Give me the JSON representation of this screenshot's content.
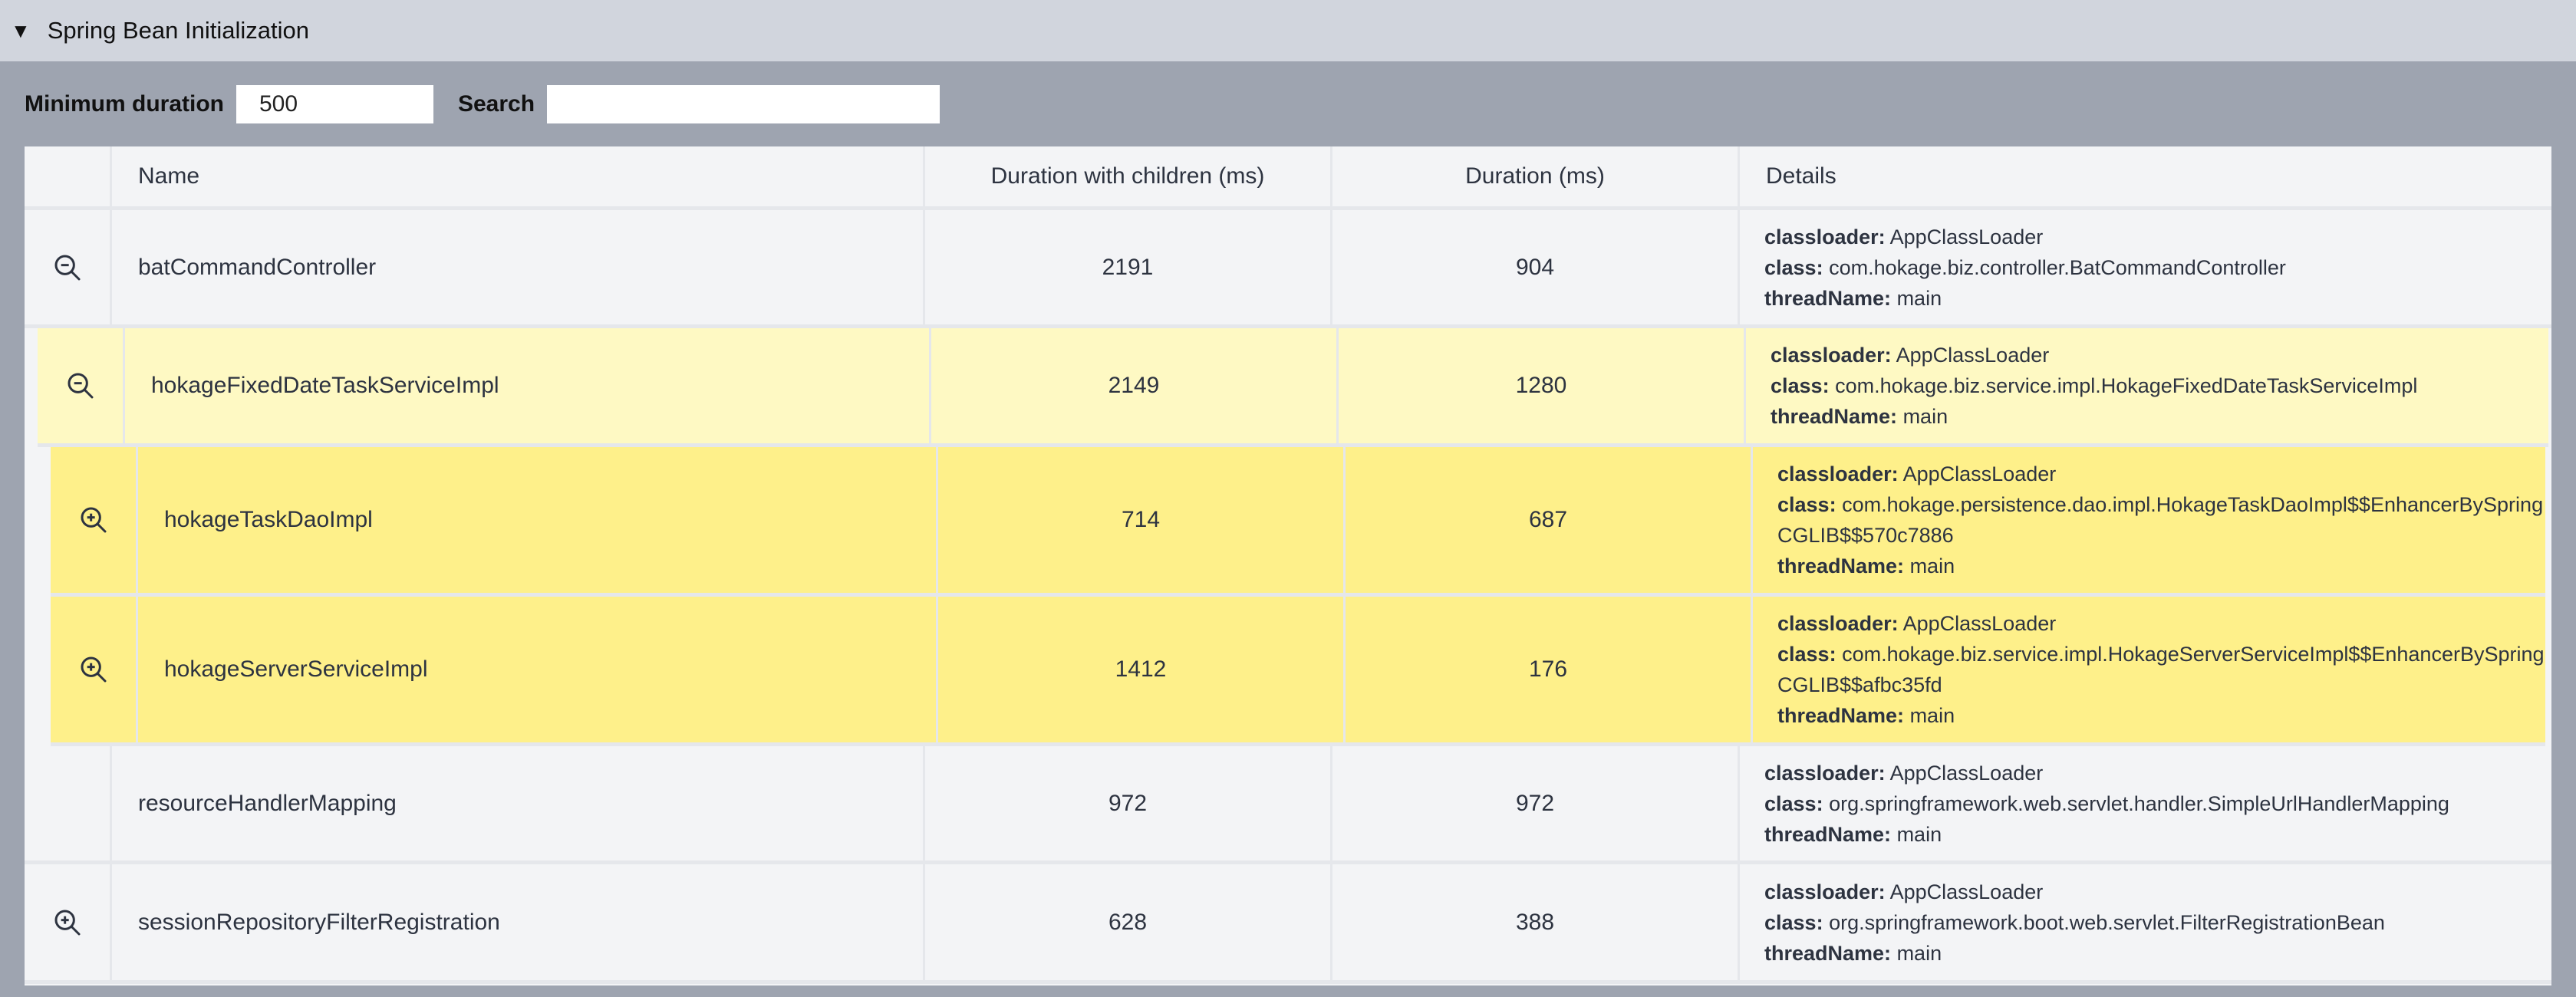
{
  "section": {
    "title": "Spring Bean Initialization",
    "toggle_icon": "triangle-down-icon"
  },
  "filters": {
    "min_duration_label": "Minimum duration",
    "min_duration_value": "500",
    "search_label": "Search",
    "search_value": ""
  },
  "table": {
    "columns": [
      "",
      "Name",
      "Duration with children (ms)",
      "Duration (ms)",
      "Details"
    ],
    "detail_keys": {
      "classloader": "classloader:",
      "class": "class:",
      "threadName": "threadName:"
    },
    "rows": [
      {
        "level": 0,
        "icon": "zoom-out",
        "name": "batCommandController",
        "duration_with_children": "2191",
        "duration": "904",
        "classloader": "AppClassLoader",
        "class": "com.hokage.biz.controller.BatCommandController",
        "threadName": "main"
      },
      {
        "level": 1,
        "icon": "zoom-out",
        "name": "hokageFixedDateTaskServiceImpl",
        "duration_with_children": "2149",
        "duration": "1280",
        "classloader": "AppClassLoader",
        "class": "com.hokage.biz.service.impl.HokageFixedDateTaskServiceImpl",
        "threadName": "main"
      },
      {
        "level": 2,
        "icon": "zoom-in",
        "name": "hokageTaskDaoImpl",
        "duration_with_children": "714",
        "duration": "687",
        "classloader": "AppClassLoader",
        "class": "com.hokage.persistence.dao.impl.HokageTaskDaoImpl$$EnhancerBySpringCGLIB$$570c7886",
        "threadName": "main"
      },
      {
        "level": 2,
        "icon": "zoom-in",
        "name": "hokageServerServiceImpl",
        "duration_with_children": "1412",
        "duration": "176",
        "classloader": "AppClassLoader",
        "class": "com.hokage.biz.service.impl.HokageServerServiceImpl$$EnhancerBySpringCGLIB$$afbc35fd",
        "threadName": "main"
      },
      {
        "level": 0,
        "icon": "",
        "name": "resourceHandlerMapping",
        "duration_with_children": "972",
        "duration": "972",
        "classloader": "AppClassLoader",
        "class": "org.springframework.web.servlet.handler.SimpleUrlHandlerMapping",
        "threadName": "main"
      },
      {
        "level": 0,
        "icon": "zoom-in",
        "name": "sessionRepositoryFilterRegistration",
        "duration_with_children": "628",
        "duration": "388",
        "classloader": "AppClassLoader",
        "class": "org.springframework.boot.web.servlet.FilterRegistrationBean",
        "threadName": "main"
      }
    ]
  },
  "colors": {
    "header_bg": "#d1d5dd",
    "body_bg": "#9ea4b0",
    "table_bg": "#f3f4f6",
    "level1_bg": "#fef9c3",
    "level2_bg": "#fef08a",
    "text": "#2d3340"
  }
}
